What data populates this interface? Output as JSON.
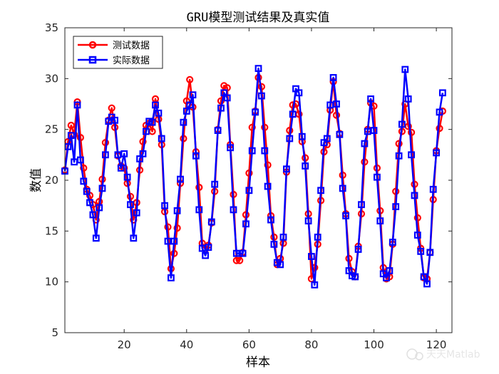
{
  "chart_data": {
    "type": "line",
    "title": "GRU模型测试结果及真实值",
    "xlabel": "样本",
    "ylabel": "数值",
    "xlim": [
      1,
      125
    ],
    "ylim": [
      5,
      35
    ],
    "xticks": [
      20,
      40,
      60,
      80,
      100,
      120
    ],
    "yticks": [
      5,
      10,
      15,
      20,
      25,
      30,
      35
    ],
    "grid": false,
    "legend_position": "top-left",
    "series": [
      {
        "name": "测试数据",
        "color": "#ff0000",
        "marker": "circle",
        "values": [
          21.0,
          23.8,
          25.4,
          24.5,
          27.7,
          24.2,
          21.2,
          19.1,
          18.5,
          17.6,
          16.1,
          17.9,
          20.1,
          23.7,
          25.9,
          27.1,
          25.2,
          22.4,
          21.4,
          21.2,
          19.7,
          18.4,
          16.1,
          17.8,
          21.0,
          23.8,
          25.4,
          25.6,
          24.8,
          28.0,
          26.0,
          23.5,
          16.9,
          15.4,
          11.3,
          12.8,
          15.3,
          19.7,
          24.1,
          27.8,
          29.9,
          27.2,
          22.8,
          19.3,
          13.8,
          13.2,
          13.6,
          15.8,
          18.9,
          25.0,
          27.8,
          29.3,
          29.1,
          23.5,
          18.6,
          12.1,
          12.1,
          12.9,
          16.6,
          20.7,
          25.2,
          26.8,
          30.1,
          29.2,
          25.2,
          21.5,
          16.5,
          14.4,
          11.7,
          12.3,
          13.8,
          20.8,
          24.9,
          27.4,
          27.5,
          26.5,
          23.8,
          22.2,
          16.7,
          10.3,
          11.4,
          13.7,
          18.0,
          22.8,
          23.5,
          26.9,
          29.7,
          26.4,
          24.6,
          20.5,
          16.7,
          12.3,
          11.0,
          10.5,
          13.5,
          16.7,
          21.8,
          25.0,
          27.6,
          27.3,
          21.2,
          17.0,
          11.4,
          10.3,
          10.5,
          13.7,
          18.9,
          23.6,
          24.8,
          27.5,
          25.3,
          24.7,
          19.6,
          16.3,
          13.3,
          10.4,
          10.3,
          12.9,
          18.1,
          22.9,
          25.1,
          26.8
        ],
        "values_note": ""
      },
      {
        "name": "实际数据",
        "color": "#0000ff",
        "marker": "square",
        "values": [
          20.9,
          23.3,
          24.4,
          21.8,
          27.4,
          22.0,
          19.9,
          18.9,
          17.8,
          16.6,
          14.3,
          17.3,
          19.2,
          22.5,
          25.8,
          26.2,
          25.9,
          22.5,
          21.2,
          22.6,
          20.3,
          17.6,
          14.3,
          16.8,
          22.1,
          22.6,
          24.8,
          25.8,
          25.7,
          27.4,
          26.6,
          24.1,
          17.5,
          14.0,
          10.4,
          14.0,
          17.0,
          20.1,
          25.7,
          26.8,
          27.4,
          28.4,
          22.4,
          17.1,
          13.3,
          12.6,
          13.4,
          15.9,
          19.6,
          24.9,
          27.1,
          28.6,
          28.1,
          23.2,
          17.1,
          12.8,
          12.8,
          12.8,
          15.7,
          19.0,
          22.9,
          26.7,
          31.0,
          28.3,
          22.9,
          19.4,
          16.1,
          13.7,
          11.9,
          11.7,
          14.4,
          21.1,
          24.1,
          26.5,
          29.0,
          28.6,
          24.3,
          21.4,
          16.0,
          12.5,
          9.7,
          14.4,
          19.0,
          23.7,
          24.1,
          27.4,
          30.1,
          27.5,
          24.5,
          19.2,
          16.5,
          11.1,
          10.6,
          10.5,
          13.2,
          17.6,
          23.6,
          24.8,
          28.0,
          24.9,
          20.3,
          16.0,
          10.8,
          10.4,
          11.1,
          13.9,
          17.4,
          22.4,
          25.5,
          30.9,
          28.0,
          22.5,
          18.5,
          14.6,
          13.0,
          10.5,
          9.8,
          12.9,
          19.1,
          22.7,
          26.7,
          28.6
        ]
      }
    ]
  },
  "watermark": {
    "text": "天天Matlab"
  }
}
